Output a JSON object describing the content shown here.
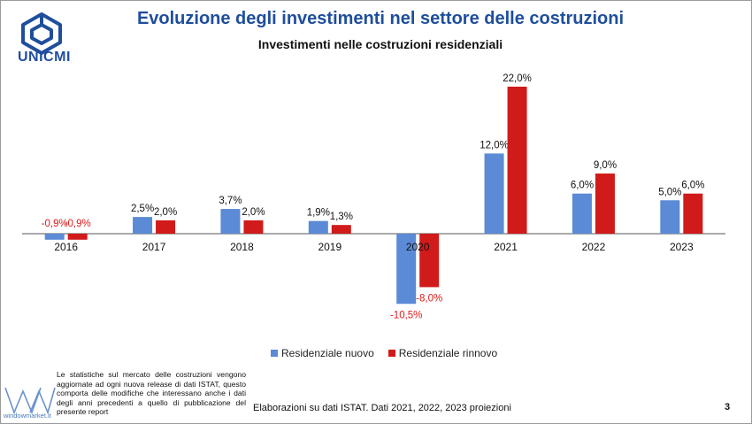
{
  "header": {
    "logo_text": "UNICMI",
    "title": "Evoluzione degli investimenti nel settore delle costruzioni"
  },
  "chart_data": {
    "type": "bar",
    "title": "Investimenti nelle costruzioni residenziali",
    "categories": [
      "2016",
      "2017",
      "2018",
      "2019",
      "2020",
      "2021",
      "2022",
      "2023"
    ],
    "series": [
      {
        "name": "Residenziale nuovo",
        "values": [
          -0.9,
          2.5,
          3.7,
          1.9,
          -10.5,
          12.0,
          6.0,
          5.0
        ],
        "labels": [
          "-0,9%",
          "2,5%",
          "3,7%",
          "1,9%",
          "-10,5%",
          "12,0%",
          "6,0%",
          "5,0%"
        ],
        "color": "#5b8ad6"
      },
      {
        "name": "Residenziale rinnovo",
        "values": [
          -0.9,
          2.0,
          2.0,
          1.3,
          -8.0,
          22.0,
          9.0,
          6.0
        ],
        "labels": [
          "-0,9%",
          "2,0%",
          "2,0%",
          "1,3%",
          "-8,0%",
          "22,0%",
          "9,0%",
          "6,0%"
        ],
        "color": "#d11a1a"
      }
    ],
    "negative_label_color": "#e01b1b",
    "ylim": [
      -11,
      24
    ],
    "grid": false,
    "legend": "bottom"
  },
  "legend": {
    "nuovo_label": "Residenziale nuovo",
    "rinnovo_label": "Residenziale rinnovo",
    "nuovo_color": "#5b8ad6",
    "rinnovo_color": "#d11a1a"
  },
  "footer": {
    "note": "Le statistiche sul mercato delle costruzioni vengono aggiornate ad ogni nuova release di dati ISTAT, questo comporta delle modifiche che interessano anche i dati degli anni precedenti a quello di pubblicazione del presente report",
    "brand": "windowmarket.it",
    "source": "Elaborazioni su dati ISTAT. Dati 2021, 2022, 2023 proiezioni",
    "page_number": "3"
  }
}
